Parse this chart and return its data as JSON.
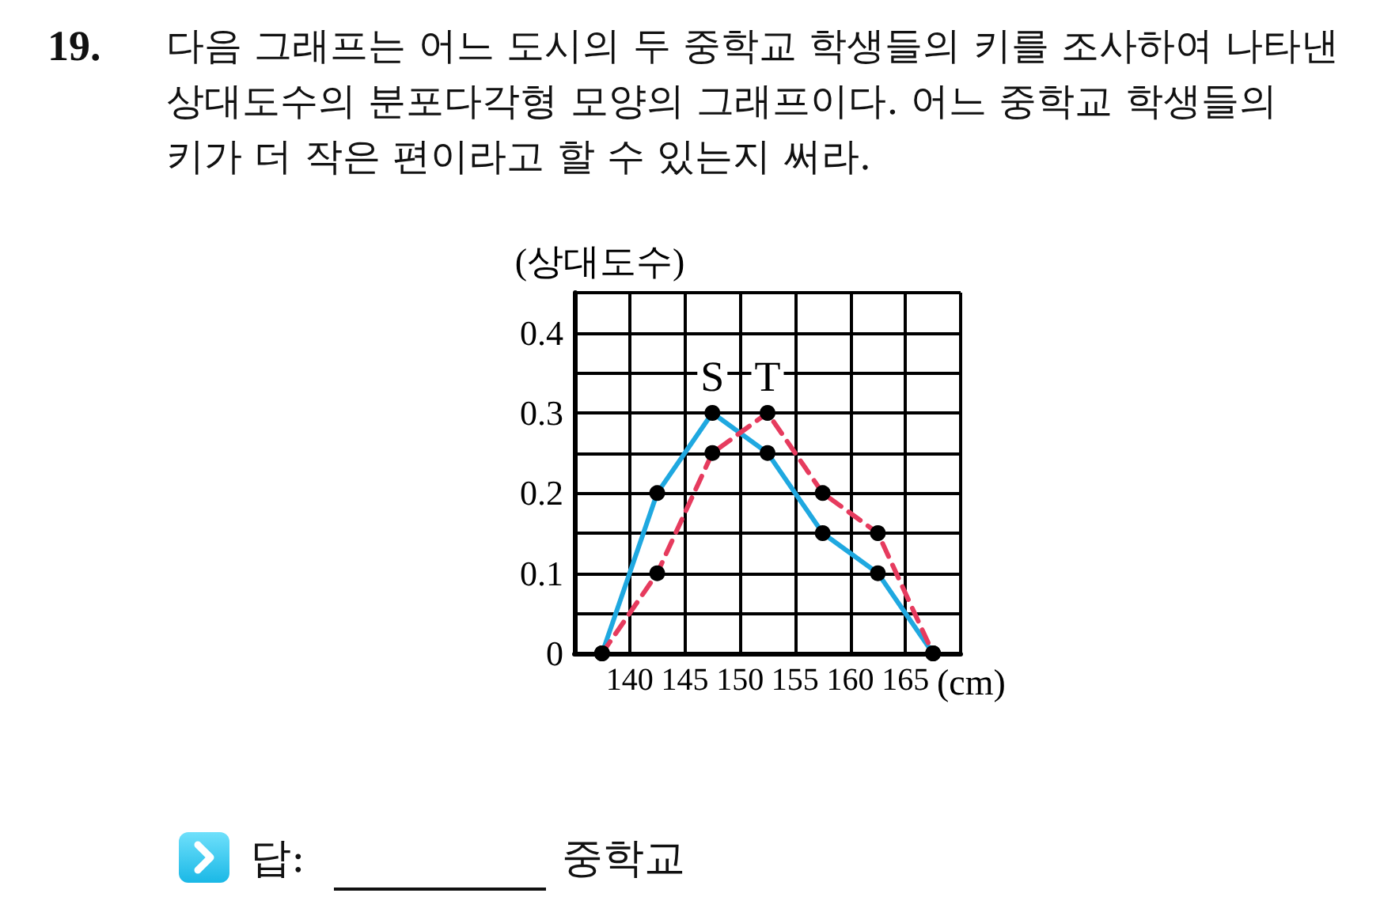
{
  "chart_data": {
    "type": "line",
    "title": "19. 다음 그래프는 어느 도시의 두 중학교 학생들의 키를 조사하여 나타낸 상대도수의 분포다각형 모양의 그래프이다. 어느 중학교 학생들의 키가 더 작은 편이라고 할 수 있는지 써라.",
    "xlabel": "(cm)",
    "ylabel": "(상대도수)",
    "x": [
      137.5,
      142.5,
      147.5,
      152.5,
      157.5,
      162.5,
      167.5
    ],
    "series": [
      {
        "name": "S",
        "color": "#1fa8e0",
        "line_style": "solid",
        "values": [
          0,
          0.2,
          0.3,
          0.25,
          0.15,
          0.1,
          0
        ]
      },
      {
        "name": "T",
        "color": "#e63b5e",
        "line_style": "dashed",
        "values": [
          0,
          0.1,
          0.25,
          0.3,
          0.2,
          0.15,
          0
        ]
      }
    ],
    "xlim": [
      135,
      170
    ],
    "xticks": [
      {
        "value": 135,
        "label": null
      },
      140,
      145,
      150,
      155,
      160,
      165,
      {
        "value": 170,
        "label": null
      }
    ],
    "ylim": [
      0,
      0.45
    ],
    "yticks": [
      0,
      {
        "value": 0.05,
        "label": null
      },
      0.1,
      {
        "value": 0.15,
        "label": null
      },
      0.2,
      {
        "value": 0.25,
        "label": null
      },
      0.3,
      {
        "value": 0.35,
        "label": null
      },
      0.4,
      {
        "value": 0.45,
        "label": null
      }
    ],
    "grid": true,
    "marker": "circle",
    "annotations": [
      "답:",
      "중학교"
    ]
  }
}
